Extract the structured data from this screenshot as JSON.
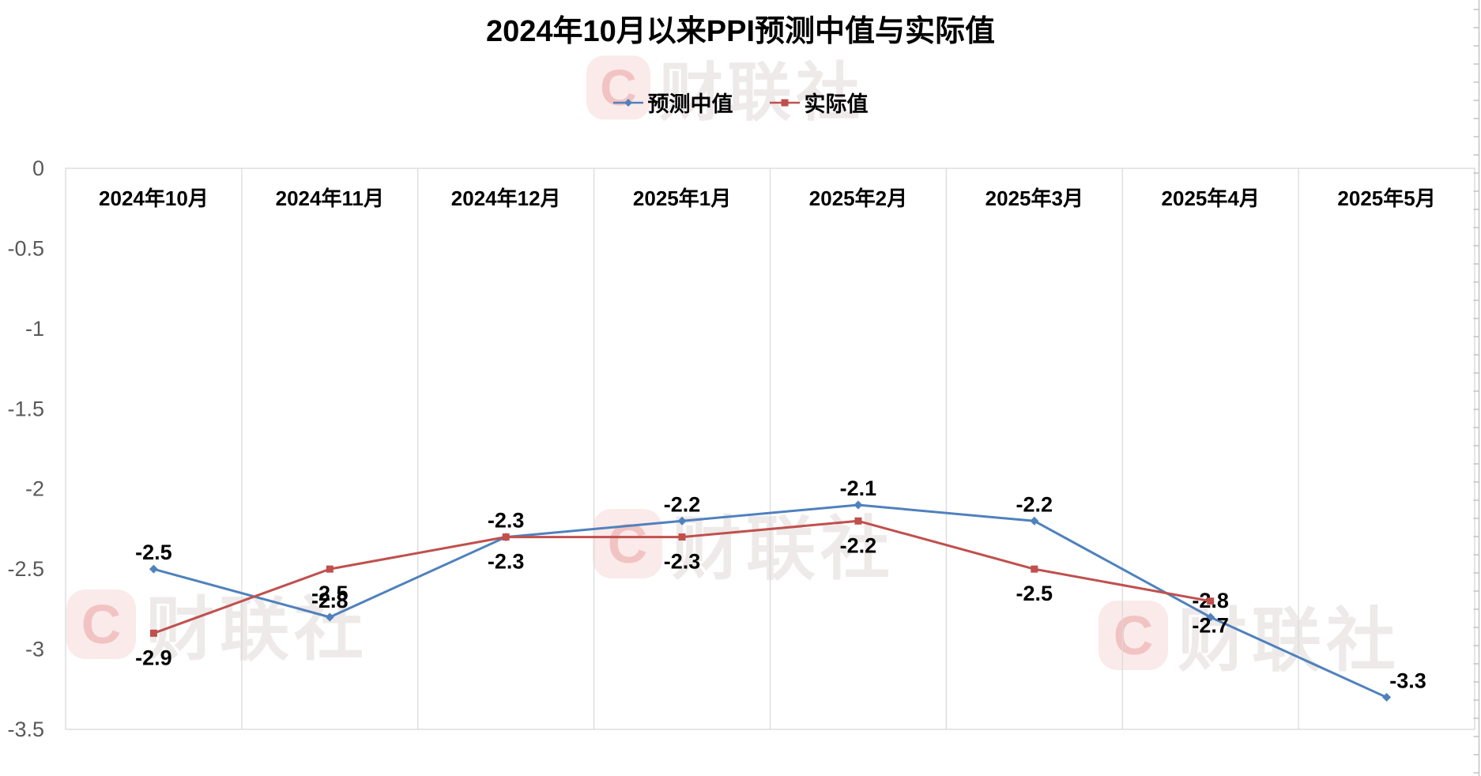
{
  "chart_data": {
    "type": "line",
    "title": "2024年10月以来PPI预测中值与实际值",
    "categories": [
      "2024年10月",
      "2024年11月",
      "2024年12月",
      "2025年1月",
      "2025年2月",
      "2025年3月",
      "2025年4月",
      "2025年5月"
    ],
    "series": [
      {
        "id": "forecast",
        "name": "预测中值",
        "color": "#4F81BD",
        "marker": "diamond",
        "label_position": "above",
        "values": [
          -2.5,
          -2.8,
          -2.3,
          -2.2,
          -2.1,
          -2.2,
          -2.8,
          -3.3
        ],
        "label_offsets": {
          "7": [
            27,
            0
          ]
        }
      },
      {
        "id": "actual",
        "name": "实际值",
        "color": "#C0504D",
        "marker": "square",
        "label_position": "below",
        "values": [
          -2.9,
          -2.5,
          -2.3,
          -2.3,
          -2.2,
          -2.5,
          -2.7,
          null
        ],
        "label_offsets": {}
      }
    ],
    "ylim": [
      -3.5,
      0
    ],
    "yticks": [
      {
        "v": 0,
        "label": "0"
      },
      {
        "v": -0.5,
        "label": "-0.5"
      },
      {
        "v": -1,
        "label": "-1"
      },
      {
        "v": -1.5,
        "label": "-1.5"
      },
      {
        "v": -2,
        "label": "-2"
      },
      {
        "v": -2.5,
        "label": "-2.5"
      },
      {
        "v": -3,
        "label": "-3"
      },
      {
        "v": -3.5,
        "label": "-3.5"
      }
    ],
    "grid": "vertical-only",
    "legend_position": "top-center"
  },
  "watermark": {
    "logo_letter": "C",
    "text": "财联社"
  },
  "colors": {
    "series_forecast": "#4F81BD",
    "series_actual": "#C0504D",
    "gridline": "#D9D9D9",
    "plot_border": "#D6D6D6",
    "axis_text": "#595959",
    "data_label": "#000000",
    "ruler": "#C3C3C3",
    "watermark_bg": "#FBEAEA",
    "watermark_letter": "#F2C3C3",
    "watermark_text": "#EDEAE9"
  }
}
